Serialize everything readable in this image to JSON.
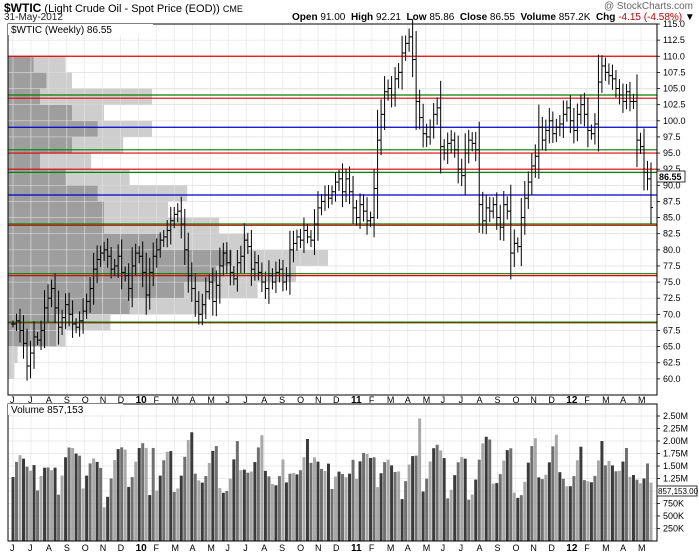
{
  "header": {
    "title_symbol": "$WTIC",
    "title_desc": "(Light Crude Oil - Spot Price (EOD))",
    "title_exchange": "CME",
    "date": "31-May-2012",
    "credit": "@ StockCharts.com",
    "open_label": "Open",
    "open": "91.00",
    "high_label": "High",
    "high": "92.21",
    "low_label": "Low",
    "low": "85.86",
    "close_label": "Close",
    "close": "86.55",
    "volume_label": "Volume",
    "volume": "857.2K",
    "chg_label": "Chg",
    "chg": "-4.15 (-4.58%)"
  },
  "price_panel": {
    "legend": "$WTIC (Weekly) 86.55",
    "last_label": "86.55"
  },
  "volume_panel": {
    "legend": "Volume 857,153",
    "last_label": "857,153.00"
  },
  "colors": {
    "price_line": "#000000",
    "res_line": "#e00000",
    "sup_line": "#008000",
    "mid_line": "#0000cc",
    "vbp_light": "#bdbdbd",
    "vbp_dark": "#8a8a8a",
    "vol_dark": "#3a3a3a",
    "vol_mid": "#707070",
    "vol_light": "#a8a8a8"
  },
  "chart_data": [
    {
      "type": "ohlc",
      "title": "$WTIC (Weekly) 86.55",
      "ylim": [
        57.5,
        115
      ],
      "y_ticks": [
        "60.0",
        "62.5",
        "65.0",
        "67.5",
        "70.0",
        "72.5",
        "75.0",
        "77.5",
        "80.0",
        "82.5",
        "85.0",
        "87.5",
        "90.0",
        "92.5",
        "95.0",
        "97.5",
        "100.0",
        "102.5",
        "105.0",
        "107.5",
        "110.0",
        "112.5",
        "115.0"
      ],
      "x_labels": [
        "J",
        "J",
        "A",
        "S",
        "O",
        "N",
        "D",
        "10",
        "F",
        "M",
        "A",
        "M",
        "J",
        "J",
        "A",
        "S",
        "O",
        "N",
        "D",
        "11",
        "F",
        "M",
        "A",
        "M",
        "J",
        "J",
        "A",
        "S",
        "O",
        "N",
        "D",
        "12",
        "F",
        "M",
        "A",
        "M"
      ],
      "red_levels": [
        110.0,
        103.5,
        95.0,
        92.5,
        83.8,
        76.0,
        68.7
      ],
      "green_levels": [
        104.0,
        95.5,
        92.0,
        84.0,
        76.3,
        68.8
      ],
      "blue_levels": [
        99.0,
        88.5
      ],
      "volume_by_price": [
        {
          "low": 57.5,
          "high": 60.0,
          "light": 0.0,
          "dark": 0.0
        },
        {
          "low": 60.0,
          "high": 62.5,
          "light": 0.02,
          "dark": 0.0
        },
        {
          "low": 62.5,
          "high": 65.0,
          "light": 0.03,
          "dark": 0.0
        },
        {
          "low": 65.0,
          "high": 67.5,
          "light": 0.18,
          "dark": 0.15
        },
        {
          "low": 67.5,
          "high": 70.0,
          "light": 0.32,
          "dark": 0.15
        },
        {
          "low": 70.0,
          "high": 72.5,
          "light": 0.62,
          "dark": 0.38
        },
        {
          "low": 72.5,
          "high": 75.0,
          "light": 0.78,
          "dark": 0.55
        },
        {
          "low": 75.0,
          "high": 77.5,
          "light": 0.9,
          "dark": 0.65
        },
        {
          "low": 77.5,
          "high": 80.0,
          "light": 1.0,
          "dark": 0.7
        },
        {
          "low": 80.0,
          "high": 82.5,
          "light": 0.75,
          "dark": 0.48
        },
        {
          "low": 82.5,
          "high": 85.0,
          "light": 0.66,
          "dark": 0.3
        },
        {
          "low": 85.0,
          "high": 87.5,
          "light": 0.5,
          "dark": 0.3
        },
        {
          "low": 87.5,
          "high": 90.0,
          "light": 0.56,
          "dark": 0.28
        },
        {
          "low": 90.0,
          "high": 92.5,
          "light": 0.38,
          "dark": 0.18
        },
        {
          "low": 92.5,
          "high": 95.0,
          "light": 0.26,
          "dark": 0.1
        },
        {
          "low": 95.0,
          "high": 97.5,
          "light": 0.36,
          "dark": 0.2
        },
        {
          "low": 97.5,
          "high": 100.0,
          "light": 0.45,
          "dark": 0.28
        },
        {
          "low": 100.0,
          "high": 102.5,
          "light": 0.3,
          "dark": 0.2
        },
        {
          "low": 102.5,
          "high": 105.0,
          "light": 0.45,
          "dark": 0.1
        },
        {
          "low": 105.0,
          "high": 107.5,
          "light": 0.2,
          "dark": 0.12
        },
        {
          "low": 107.5,
          "high": 110.0,
          "light": 0.18,
          "dark": 0.08
        },
        {
          "low": 110.0,
          "high": 112.5,
          "light": 0.0,
          "dark": 0.0
        }
      ],
      "closes": [
        68.5,
        69.0,
        67.5,
        65.5,
        62.0,
        64.0,
        66.5,
        66.0,
        67.5,
        71.0,
        72.5,
        74.0,
        71.0,
        68.0,
        69.5,
        71.5,
        70.0,
        68.5,
        68.0,
        69.0,
        70.5,
        72.0,
        74.0,
        77.0,
        78.5,
        79.5,
        80.0,
        79.0,
        77.0,
        77.5,
        79.0,
        76.5,
        76.0,
        74.0,
        77.5,
        79.5,
        79.0,
        76.5,
        73.0,
        76.5,
        79.0,
        80.0,
        81.5,
        82.0,
        83.0,
        84.5,
        85.5,
        86.0,
        84.0,
        80.0,
        76.0,
        74.0,
        72.0,
        70.0,
        71.5,
        73.5,
        75.0,
        72.0,
        74.5,
        77.5,
        79.5,
        78.0,
        76.5,
        75.5,
        78.0,
        79.0,
        81.5,
        80.5,
        77.0,
        78.0,
        76.5,
        75.0,
        74.0,
        76.0,
        75.0,
        76.5,
        77.0,
        75.0,
        76.0,
        80.0,
        81.0,
        82.0,
        81.5,
        83.0,
        82.0,
        81.5,
        84.0,
        86.5,
        87.5,
        88.5,
        88.0,
        89.0,
        90.5,
        91.0,
        89.0,
        91.0,
        89.0,
        86.5,
        85.0,
        87.0,
        86.0,
        84.5,
        85.0,
        89.5,
        97.0,
        101.0,
        104.5,
        105.0,
        104.0,
        106.5,
        107.5,
        110.5,
        112.0,
        113.0,
        109.5,
        103.0,
        100.5,
        98.0,
        97.5,
        99.0,
        101.0,
        102.0,
        96.0,
        95.0,
        96.5,
        97.0,
        95.5,
        92.5,
        91.5,
        95.0,
        97.0,
        96.5,
        95.5,
        87.0,
        84.5,
        86.5,
        86.0,
        87.0,
        85.0,
        83.5,
        87.0,
        86.0,
        79.5,
        81.0,
        80.5,
        85.0,
        88.0,
        90.5,
        93.0,
        94.5,
        99.0,
        97.0,
        98.5,
        100.0,
        98.0,
        99.0,
        99.5,
        101.0,
        102.0,
        100.0,
        98.5,
        101.0,
        102.5,
        101.0,
        98.5,
        98.0,
        99.5,
        106.0,
        108.5,
        107.5,
        107.0,
        106.5,
        105.0,
        104.0,
        103.0,
        104.5,
        103.0,
        103.0,
        97.0,
        96.0,
        92.0,
        91.0,
        86.55
      ],
      "volume_axis": {
        "ylim": [
          0,
          2500000
        ],
        "ticks": [
          "250K",
          "500K",
          "750K",
          "1.00M",
          "1.25M",
          "1.50M",
          "1.75M",
          "2.00M",
          "2.25M",
          "2.50M"
        ]
      }
    }
  ]
}
